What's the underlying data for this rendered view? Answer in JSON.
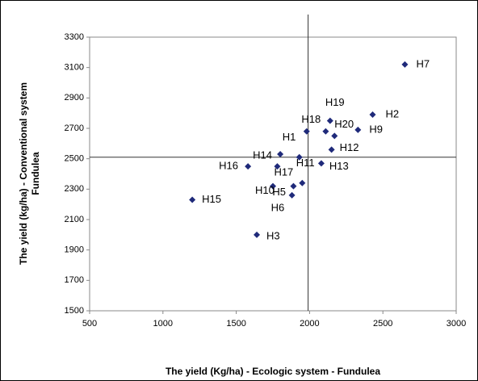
{
  "chart_data": {
    "type": "scatter",
    "x_label": "The yield  (Kg/ha)  - Ecologic system  - Fundulea",
    "y_label": [
      "The yield  (kg/ha) - Conventional system",
      "Fundulea"
    ],
    "series": [
      {
        "color": "#1f2a7a",
        "labels": [
          "H7",
          "H2",
          "H19",
          "H1",
          "H18",
          "H20",
          "H9",
          "H12",
          "H13",
          "H11",
          "H14",
          "H16",
          "H17",
          "H10",
          "H5",
          "H6",
          null,
          "H15",
          "H3"
        ],
        "x": [
          2650,
          2430,
          2140,
          1980,
          2110,
          2170,
          2330,
          2150,
          2080,
          1930,
          1800,
          1580,
          1780,
          1750,
          1890,
          1880,
          1950,
          1200,
          1640
        ],
        "values": [
          3120,
          2790,
          2750,
          2680,
          2680,
          2650,
          2690,
          2560,
          2470,
          2510,
          2530,
          2450,
          2450,
          2320,
          2320,
          2260,
          2340,
          2230,
          2000
        ]
      }
    ],
    "vline": 1990,
    "hline": 2510,
    "xlim": [
      500,
      3000
    ],
    "xticks": [
      500,
      1000,
      1500,
      2000,
      2500,
      3000
    ],
    "ylim": [
      1500,
      3300
    ],
    "yticks": [
      1500,
      1700,
      1900,
      2100,
      2300,
      2500,
      2700,
      2900,
      3100,
      3300
    ]
  }
}
